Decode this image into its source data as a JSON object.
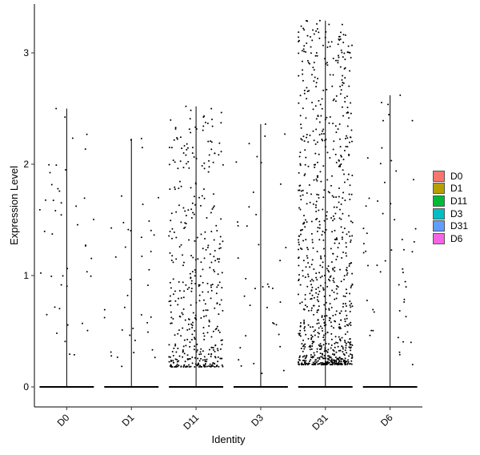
{
  "chart_data": {
    "type": "violin-jitter",
    "xlabel": "Identity",
    "ylabel": "Expression Level",
    "categories": [
      "D0",
      "D1",
      "D11",
      "D3",
      "D31",
      "D6"
    ],
    "ylim": [
      -0.18,
      3.32
    ],
    "yticks": [
      0,
      1,
      2,
      3
    ],
    "max_values": [
      2.5,
      2.23,
      2.52,
      2.36,
      3.29,
      2.62
    ],
    "nonzero_cell_counts_approx": [
      45,
      40,
      430,
      40,
      900,
      55
    ],
    "nonzero_range": {
      "D0": [
        0.28,
        2.5
      ],
      "D1": [
        0.18,
        2.23
      ],
      "D11": [
        0.18,
        2.52
      ],
      "D3": [
        0.12,
        2.36
      ],
      "D31": [
        0.2,
        3.29
      ],
      "D6": [
        0.18,
        2.62
      ]
    },
    "legend": {
      "position": "right",
      "entries": [
        {
          "label": "D0",
          "color": "#F8766D"
        },
        {
          "label": "D1",
          "color": "#B79F00"
        },
        {
          "label": "D11",
          "color": "#00BA38"
        },
        {
          "label": "D3",
          "color": "#00BFC4"
        },
        {
          "label": "D31",
          "color": "#619CFF"
        },
        {
          "label": "D6",
          "color": "#F564E3"
        }
      ]
    },
    "grid": false
  }
}
